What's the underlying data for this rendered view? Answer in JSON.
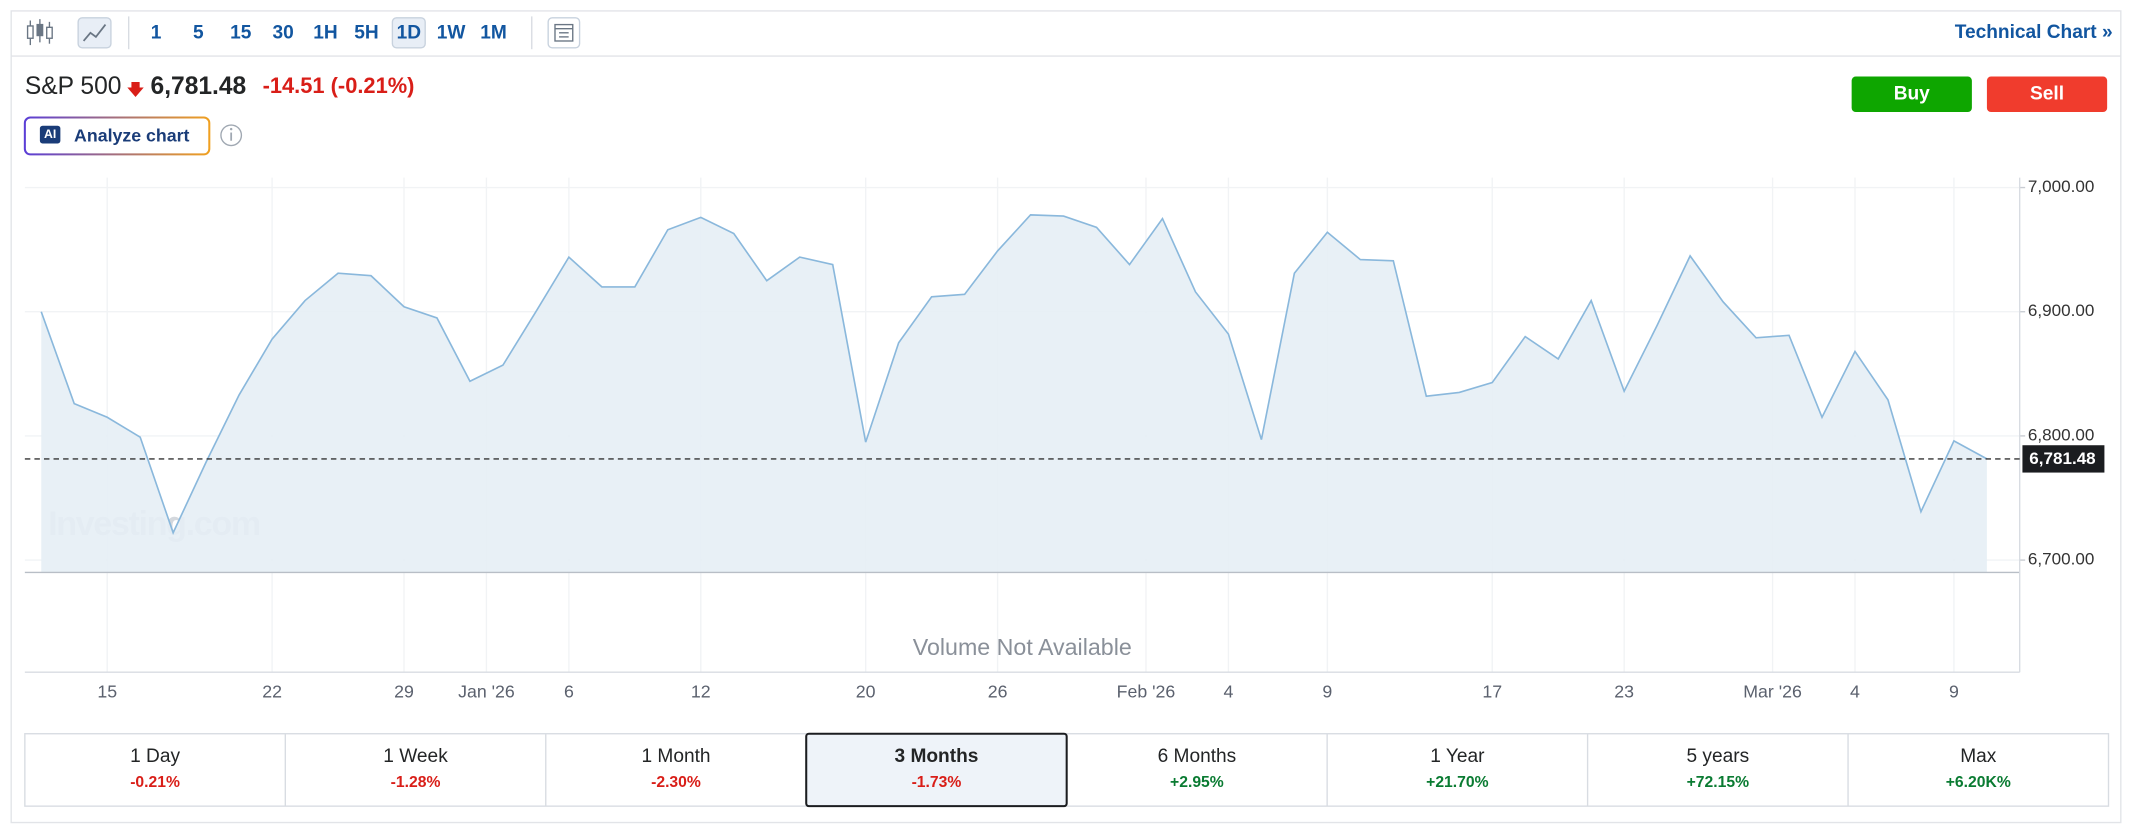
{
  "toolbar": {
    "intervals": [
      "1",
      "5",
      "15",
      "30",
      "1H",
      "5H",
      "1D",
      "1W",
      "1M"
    ],
    "selected": 6,
    "link": "Technical Chart »"
  },
  "header": {
    "name": "S&P 500",
    "price": "6,781.48",
    "change": "-14.51 (-0.21%)"
  },
  "buttons": {
    "buy": "Buy",
    "sell": "Sell"
  },
  "analyze": {
    "badge": "AI",
    "label": "Analyze chart"
  },
  "chart_data": {
    "type": "line",
    "categories": [
      null,
      null,
      "15",
      null,
      null,
      null,
      null,
      "22",
      null,
      null,
      null,
      "29",
      null,
      null,
      "Jan '26",
      null,
      "6",
      null,
      null,
      null,
      "12",
      null,
      null,
      null,
      null,
      "20",
      null,
      null,
      null,
      "26",
      null,
      null,
      null,
      null,
      "Feb '26",
      null,
      "4",
      null,
      null,
      "9",
      null,
      null,
      null,
      null,
      "17",
      null,
      null,
      null,
      "23",
      null,
      null,
      null,
      null,
      "Mar '26",
      null,
      "4",
      null,
      null,
      "9",
      null
    ],
    "values": [
      6900,
      6826,
      6815,
      6799,
      6722,
      6779,
      6833,
      6878,
      6909,
      6931,
      6929,
      6904,
      6895,
      6844,
      6857,
      6900,
      6944,
      6920,
      6920,
      6966,
      6976,
      6963,
      6925,
      6944,
      6938,
      6795,
      6875,
      6912,
      6914,
      6949,
      6978,
      6977,
      6968,
      6938,
      6975,
      6916,
      6882,
      6797,
      6931,
      6964,
      6942,
      6941,
      6832,
      6835,
      6843,
      6880,
      6862,
      6909,
      6836,
      6889,
      6945,
      6908,
      6879,
      6881,
      6815,
      6868,
      6829,
      6739,
      6796,
      6781.48
    ],
    "color": "#8ab8dc",
    "fill": "#e6eef5",
    "ylim": [
      6690,
      7008
    ],
    "yticks": [
      {
        "value": 6700,
        "label": "6,700.00"
      },
      {
        "value": 6800,
        "label": "6,800.00"
      },
      {
        "value": 6900,
        "label": "6,900.00"
      },
      {
        "value": 7000,
        "label": "7,000.00"
      }
    ],
    "price_line": {
      "value": 6781.48,
      "label": "6,781.48"
    },
    "watermark": "Investing.com",
    "volume_note": "Volume Not Available",
    "grid": true
  },
  "periods": {
    "items": [
      {
        "label": "1 Day",
        "change": "-0.21%"
      },
      {
        "label": "1 Week",
        "change": "-1.28%"
      },
      {
        "label": "1 Month",
        "change": "-2.30%"
      },
      {
        "label": "3 Months",
        "change": "-1.73%"
      },
      {
        "label": "6 Months",
        "change": "+2.95%"
      },
      {
        "label": "1 Year",
        "change": "+21.70%"
      },
      {
        "label": "5 years",
        "change": "+72.15%"
      },
      {
        "label": "Max",
        "change": "+6.20K%"
      }
    ],
    "selected": 3
  }
}
